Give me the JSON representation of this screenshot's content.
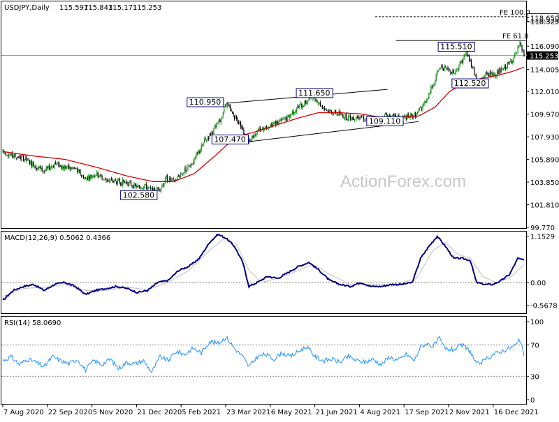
{
  "chart_data": [
    {
      "type": "candlestick",
      "title": "USDJPY,Daily",
      "ohlc_values": [
        "115.597",
        "115.843",
        "115.171",
        "115.253"
      ],
      "current_price": 115.253,
      "current_price_label": "115.253",
      "ylim": [
        99.77,
        120.0
      ],
      "y_ticks": [
        "118.650",
        "118.325",
        "116.090",
        "114.005",
        "112.010",
        "109.970",
        "107.930",
        "105.890",
        "103.850",
        "101.810",
        "99.770"
      ],
      "x_tick_labels": [
        "7 Aug 2020",
        "22 Sep 2020",
        "5 Nov 2020",
        "21 Dec 2020",
        "5 Feb 2021",
        "23 Mar 2021",
        "6 May 2021",
        "21 Jun 2021",
        "4 Aug 2021",
        "17 Sep 2021",
        "2 Nov 2021",
        "16 Dec 2021"
      ],
      "ma_series": {
        "name": "",
        "color": "#d40000"
      },
      "price_anchors": [
        [
          0,
          106.6
        ],
        [
          10,
          106.2
        ],
        [
          20,
          106.0
        ],
        [
          30,
          105.4
        ],
        [
          40,
          104.8
        ],
        [
          50,
          105.5
        ],
        [
          60,
          105.2
        ],
        [
          70,
          105.0
        ],
        [
          80,
          104.2
        ],
        [
          90,
          104.6
        ],
        [
          100,
          104.0
        ],
        [
          110,
          103.9
        ],
        [
          120,
          103.8
        ],
        [
          130,
          103.4
        ],
        [
          137,
          103.5
        ],
        [
          145,
          103.0
        ],
        [
          152,
          103.3
        ],
        [
          158,
          104.2
        ],
        [
          165,
          103.9
        ],
        [
          175,
          104.8
        ],
        [
          185,
          105.8
        ],
        [
          195,
          107.5
        ],
        [
          202,
          108.3
        ],
        [
          210,
          109.4
        ],
        [
          216,
          110.95
        ],
        [
          222,
          110.0
        ],
        [
          230,
          109.0
        ],
        [
          236,
          107.47
        ],
        [
          245,
          108.3
        ],
        [
          255,
          108.9
        ],
        [
          265,
          109.2
        ],
        [
          275,
          109.6
        ],
        [
          285,
          110.6
        ],
        [
          293,
          111.0
        ],
        [
          300,
          111.65
        ],
        [
          308,
          110.7
        ],
        [
          316,
          110.2
        ],
        [
          325,
          110.0
        ],
        [
          335,
          109.6
        ],
        [
          345,
          109.8
        ],
        [
          355,
          109.4
        ],
        [
          362,
          109.1
        ],
        [
          370,
          109.9
        ],
        [
          380,
          109.6
        ],
        [
          390,
          109.7
        ],
        [
          400,
          109.9
        ],
        [
          408,
          111.0
        ],
        [
          413,
          112.0
        ],
        [
          418,
          113.2
        ],
        [
          423,
          114.2
        ],
        [
          430,
          114.0
        ],
        [
          437,
          113.7
        ],
        [
          442,
          114.5
        ],
        [
          448,
          115.51
        ],
        [
          454,
          114.3
        ],
        [
          460,
          112.52
        ],
        [
          466,
          113.6
        ],
        [
          472,
          113.5
        ],
        [
          478,
          113.7
        ],
        [
          484,
          114.0
        ],
        [
          490,
          114.6
        ],
        [
          496,
          115.3
        ],
        [
          500,
          116.3
        ],
        [
          504,
          115.25
        ]
      ],
      "ma_anchors": [
        [
          0,
          106.6
        ],
        [
          30,
          106.2
        ],
        [
          60,
          105.9
        ],
        [
          90,
          105.2
        ],
        [
          120,
          104.4
        ],
        [
          145,
          103.9
        ],
        [
          165,
          103.9
        ],
        [
          185,
          104.6
        ],
        [
          205,
          106.2
        ],
        [
          225,
          107.9
        ],
        [
          245,
          108.4
        ],
        [
          265,
          109.0
        ],
        [
          285,
          109.6
        ],
        [
          305,
          110.1
        ],
        [
          325,
          110.1
        ],
        [
          345,
          110.0
        ],
        [
          365,
          109.7
        ],
        [
          385,
          109.7
        ],
        [
          402,
          109.8
        ],
        [
          418,
          110.6
        ],
        [
          432,
          112.0
        ],
        [
          448,
          112.9
        ],
        [
          464,
          113.2
        ],
        [
          480,
          113.5
        ],
        [
          492,
          113.8
        ],
        [
          504,
          114.2
        ]
      ],
      "annotations": [
        {
          "text": "FE 100.0",
          "value": 118.75
        },
        {
          "text": "118.650",
          "value": 118.65
        },
        {
          "text": "FE 61.8",
          "value": 116.6
        },
        {
          "text": "115.510",
          "value": 115.51
        },
        {
          "text": "112.520",
          "value": 112.52
        },
        {
          "text": "110.950",
          "value": 110.95
        },
        {
          "text": "111.650",
          "value": 111.65
        },
        {
          "text": "109.110",
          "value": 109.11
        },
        {
          "text": "107.470",
          "value": 107.47
        },
        {
          "text": "102.580",
          "value": 102.58
        }
      ],
      "trendlines": [
        {
          "from": [
            216,
            110.95
          ],
          "to": [
            372,
            112.2
          ]
        },
        {
          "from": [
            236,
            107.47
          ],
          "to": [
            402,
            109.3
          ]
        }
      ],
      "fe_levels": [
        {
          "value": 118.75,
          "from": 360,
          "dashed": true
        },
        {
          "value": 116.6,
          "from": 380,
          "dashed": false
        }
      ]
    },
    {
      "type": "line",
      "title": "MACD(12,26,9) 0.5062 0.4366",
      "ylim": [
        -0.75,
        1.25
      ],
      "y_ticks": [
        "1.1529",
        "0.00",
        "-0.5678"
      ],
      "macd_anchors": [
        [
          0,
          -0.45
        ],
        [
          10,
          -0.2
        ],
        [
          20,
          -0.1
        ],
        [
          30,
          -0.05
        ],
        [
          40,
          -0.2
        ],
        [
          50,
          -0.05
        ],
        [
          60,
          0.0
        ],
        [
          70,
          -0.1
        ],
        [
          80,
          -0.3
        ],
        [
          90,
          -0.2
        ],
        [
          100,
          -0.15
        ],
        [
          110,
          -0.1
        ],
        [
          120,
          -0.15
        ],
        [
          130,
          -0.25
        ],
        [
          140,
          -0.2
        ],
        [
          150,
          0.0
        ],
        [
          160,
          0.05
        ],
        [
          170,
          0.3
        ],
        [
          180,
          0.4
        ],
        [
          190,
          0.6
        ],
        [
          200,
          1.0
        ],
        [
          208,
          1.2
        ],
        [
          216,
          1.1
        ],
        [
          224,
          0.9
        ],
        [
          232,
          0.5
        ],
        [
          238,
          -0.1
        ],
        [
          246,
          0.0
        ],
        [
          256,
          0.15
        ],
        [
          266,
          0.1
        ],
        [
          276,
          0.25
        ],
        [
          286,
          0.4
        ],
        [
          296,
          0.5
        ],
        [
          306,
          0.3
        ],
        [
          316,
          0.05
        ],
        [
          326,
          -0.05
        ],
        [
          336,
          -0.1
        ],
        [
          346,
          0.0
        ],
        [
          356,
          -0.1
        ],
        [
          366,
          -0.1
        ],
        [
          376,
          -0.05
        ],
        [
          386,
          -0.05
        ],
        [
          396,
          0.0
        ],
        [
          404,
          0.6
        ],
        [
          412,
          0.9
        ],
        [
          420,
          1.15
        ],
        [
          428,
          0.9
        ],
        [
          436,
          0.6
        ],
        [
          444,
          0.6
        ],
        [
          452,
          0.55
        ],
        [
          458,
          0.0
        ],
        [
          466,
          -0.05
        ],
        [
          474,
          -0.05
        ],
        [
          482,
          0.05
        ],
        [
          490,
          0.2
        ],
        [
          498,
          0.6
        ],
        [
          504,
          0.55
        ]
      ],
      "signal_anchors": [
        [
          0,
          -0.35
        ],
        [
          20,
          -0.15
        ],
        [
          40,
          -0.12
        ],
        [
          60,
          -0.05
        ],
        [
          80,
          -0.2
        ],
        [
          100,
          -0.2
        ],
        [
          120,
          -0.12
        ],
        [
          140,
          -0.18
        ],
        [
          160,
          0.0
        ],
        [
          180,
          0.3
        ],
        [
          200,
          0.8
        ],
        [
          214,
          1.1
        ],
        [
          226,
          0.95
        ],
        [
          238,
          0.3
        ],
        [
          250,
          0.0
        ],
        [
          266,
          0.1
        ],
        [
          286,
          0.3
        ],
        [
          300,
          0.45
        ],
        [
          316,
          0.2
        ],
        [
          336,
          -0.05
        ],
        [
          356,
          -0.05
        ],
        [
          380,
          -0.05
        ],
        [
          400,
          0.1
        ],
        [
          416,
          0.8
        ],
        [
          428,
          1.0
        ],
        [
          440,
          0.7
        ],
        [
          452,
          0.6
        ],
        [
          464,
          0.15
        ],
        [
          478,
          -0.02
        ],
        [
          492,
          0.15
        ],
        [
          504,
          0.44
        ]
      ],
      "series_colors": {
        "macd": "#000080",
        "signal": "#c0c0c0"
      }
    },
    {
      "type": "line",
      "title": "RSI(14) 58.0690",
      "ylim": [
        0,
        100
      ],
      "y_ticks": [
        "100",
        "70",
        "30",
        "0"
      ],
      "levels": [
        70,
        30
      ],
      "rsi_anchors": [
        [
          0,
          50
        ],
        [
          8,
          55
        ],
        [
          16,
          45
        ],
        [
          24,
          52
        ],
        [
          32,
          48
        ],
        [
          40,
          42
        ],
        [
          48,
          55
        ],
        [
          56,
          50
        ],
        [
          64,
          46
        ],
        [
          72,
          52
        ],
        [
          80,
          38
        ],
        [
          88,
          50
        ],
        [
          96,
          45
        ],
        [
          104,
          52
        ],
        [
          112,
          40
        ],
        [
          120,
          48
        ],
        [
          128,
          46
        ],
        [
          136,
          50
        ],
        [
          144,
          35
        ],
        [
          152,
          55
        ],
        [
          160,
          50
        ],
        [
          168,
          62
        ],
        [
          176,
          58
        ],
        [
          184,
          66
        ],
        [
          192,
          60
        ],
        [
          200,
          75
        ],
        [
          208,
          72
        ],
        [
          216,
          80
        ],
        [
          224,
          66
        ],
        [
          232,
          55
        ],
        [
          238,
          42
        ],
        [
          246,
          55
        ],
        [
          254,
          58
        ],
        [
          262,
          52
        ],
        [
          270,
          60
        ],
        [
          278,
          55
        ],
        [
          286,
          62
        ],
        [
          294,
          68
        ],
        [
          302,
          55
        ],
        [
          310,
          50
        ],
        [
          318,
          52
        ],
        [
          326,
          48
        ],
        [
          334,
          55
        ],
        [
          342,
          50
        ],
        [
          350,
          48
        ],
        [
          358,
          52
        ],
        [
          366,
          45
        ],
        [
          374,
          55
        ],
        [
          382,
          50
        ],
        [
          390,
          58
        ],
        [
          398,
          50
        ],
        [
          404,
          68
        ],
        [
          410,
          72
        ],
        [
          416,
          68
        ],
        [
          422,
          78
        ],
        [
          428,
          65
        ],
        [
          436,
          64
        ],
        [
          444,
          70
        ],
        [
          452,
          62
        ],
        [
          458,
          45
        ],
        [
          466,
          50
        ],
        [
          474,
          58
        ],
        [
          482,
          62
        ],
        [
          490,
          66
        ],
        [
          496,
          70
        ],
        [
          500,
          76
        ],
        [
          504,
          58
        ]
      ],
      "series_color": "#1e90ff"
    }
  ],
  "watermark": "ActionForex.com",
  "colors": {
    "up": "#0a8a0a",
    "down": "#000000",
    "ma": "#d40000",
    "grid": "#c8c8c8",
    "label_border": "#000080"
  }
}
